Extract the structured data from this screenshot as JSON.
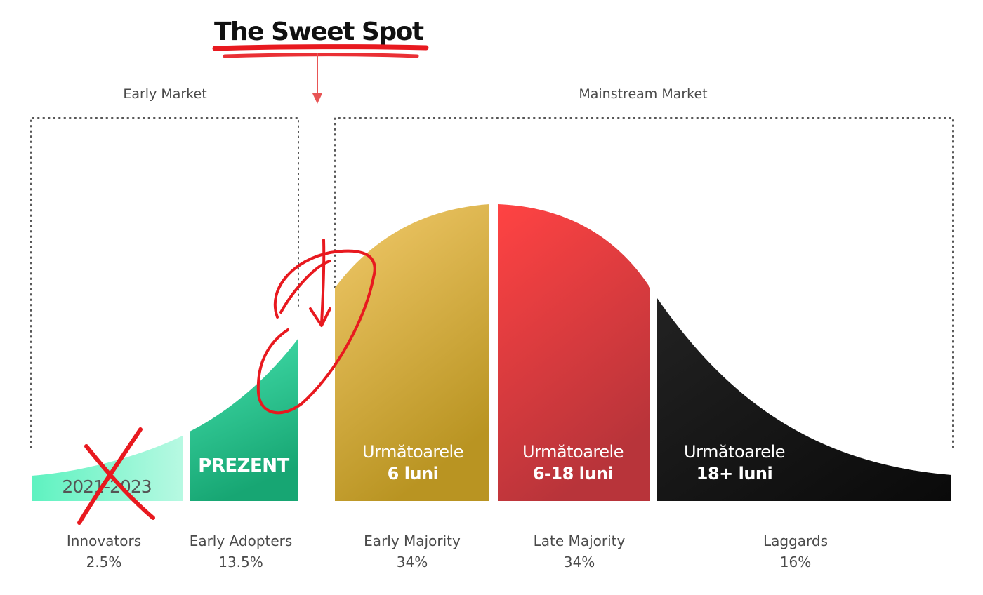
{
  "title": "The Sweet Spot",
  "markets": {
    "early": "Early Market",
    "mainstream": "Mainstream Market"
  },
  "segments": {
    "innovators": {
      "text": "2021-2023",
      "color": "#a8f7dc"
    },
    "early_adopters": {
      "text": "PREZENT",
      "color": "#2fd69c"
    },
    "early_majority": {
      "line1": "Următoarele",
      "line2": "6 luni",
      "color": "#e3b84a"
    },
    "late_majority": {
      "line1": "Următoarele",
      "line2": "6-18 luni",
      "color": "#e03c3c"
    },
    "laggards": {
      "line1": "Următoarele",
      "line2": "18+ luni",
      "color": "#111111"
    }
  },
  "groups": [
    {
      "name": "Innovators",
      "pct": "2.5%"
    },
    {
      "name": "Early Adopters",
      "pct": "13.5%"
    },
    {
      "name": "Early Majority",
      "pct": "34%"
    },
    {
      "name": "Late Majority",
      "pct": "34%"
    },
    {
      "name": "Laggards",
      "pct": "16%"
    }
  ],
  "annotations": {
    "highlight_color": "#e8191f",
    "cross_color": "#e8191f"
  }
}
